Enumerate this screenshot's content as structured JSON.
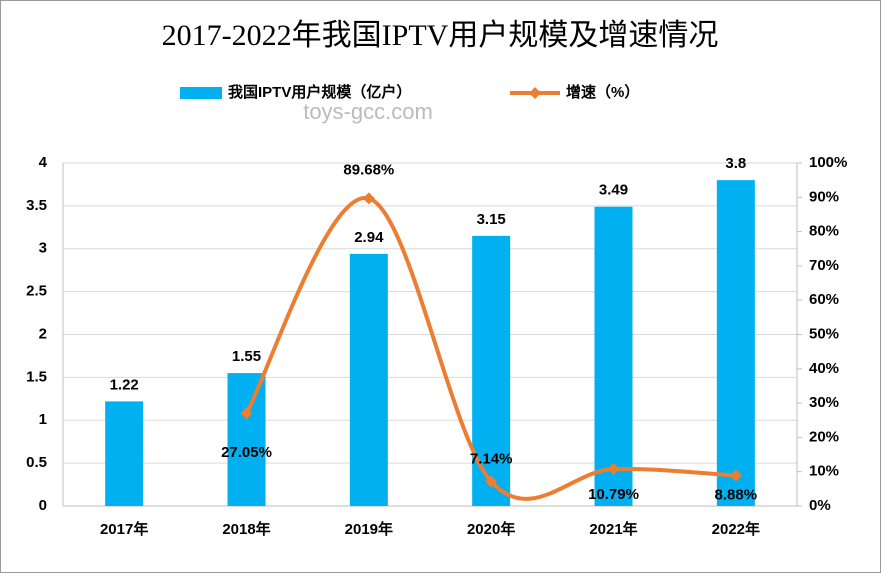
{
  "chart_data": {
    "type": "bar_line",
    "title": "2017-2022年我国IPTV用户规模及增速情况",
    "watermark": "toys-gcc.com",
    "categories": [
      "2017年",
      "2018年",
      "2019年",
      "2020年",
      "2021年",
      "2022年"
    ],
    "series": [
      {
        "name": "我国IPTV用户规模（亿户）",
        "type": "bar",
        "color": "#00b0f0",
        "axis": "y",
        "values": [
          1.22,
          1.55,
          2.94,
          3.15,
          3.49,
          3.8
        ]
      },
      {
        "name": "增速（%）",
        "type": "line",
        "color": "#ed7d31",
        "axis": "y2",
        "values": [
          null,
          27.05,
          89.68,
          7.14,
          10.79,
          8.88
        ],
        "value_labels": [
          null,
          "27.05%",
          "89.68%",
          "7.14%",
          "10.79%",
          "8.88%"
        ]
      }
    ],
    "ylim": [
      0,
      4
    ],
    "yticks": [
      0,
      0.5,
      1,
      1.5,
      2,
      2.5,
      3,
      3.5,
      4
    ],
    "y2lim": [
      0,
      100
    ],
    "y2ticks": [
      {
        "value": 0,
        "label": "0%"
      },
      {
        "value": 10,
        "label": "10%"
      },
      {
        "value": 20,
        "label": "20%"
      },
      {
        "value": 30,
        "label": "30%"
      },
      {
        "value": 40,
        "label": "40%"
      },
      {
        "value": 50,
        "label": "50%"
      },
      {
        "value": 60,
        "label": "60%"
      },
      {
        "value": 70,
        "label": "70%"
      },
      {
        "value": 80,
        "label": "80%"
      },
      {
        "value": 90,
        "label": "90%"
      },
      {
        "value": 100,
        "label": "100%"
      }
    ],
    "grid": true,
    "legend": "top"
  }
}
